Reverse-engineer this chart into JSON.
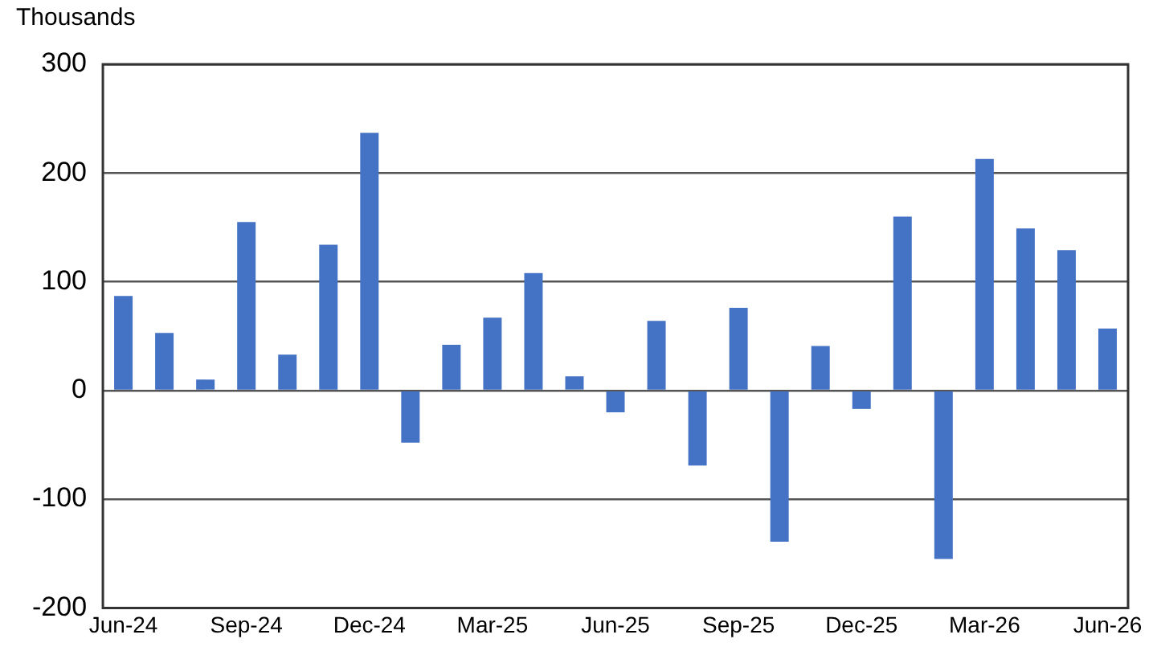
{
  "chart_data": {
    "type": "bar",
    "ylabel": "Thousands",
    "categories": [
      "Jun-24",
      null,
      null,
      "Sep-24",
      null,
      null,
      "Dec-24",
      null,
      null,
      "Mar-25",
      null,
      null,
      "Jun-25",
      null,
      null,
      "Sep-25",
      null,
      null,
      "Dec-25",
      null,
      null,
      "Mar-26",
      null,
      null,
      "Jun-26"
    ],
    "values": [
      87,
      53,
      10,
      155,
      33,
      134,
      237,
      -48,
      42,
      67,
      108,
      13,
      -20,
      64,
      -69,
      76,
      -139,
      41,
      -17,
      160,
      -155,
      213,
      149,
      129,
      57
    ],
    "color": "#4472c4",
    "ylim": [
      -200,
      300
    ],
    "yticks": [
      -200,
      -100,
      0,
      100,
      200,
      300
    ],
    "grid": "y",
    "legend": false
  }
}
